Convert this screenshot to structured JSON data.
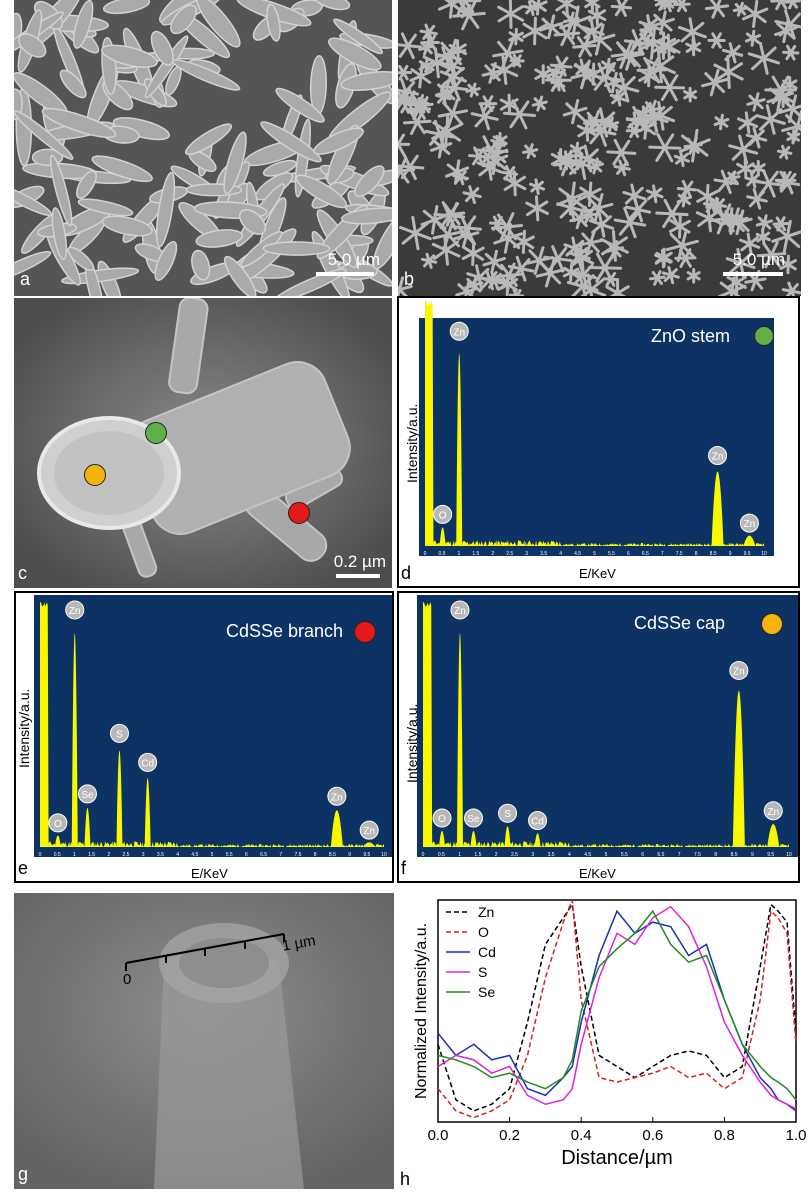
{
  "colors": {
    "green_dot": "#5fae48",
    "orange_dot": "#f3b40c",
    "red_dot": "#e41a1a",
    "eds_bg": "#0d3264",
    "eds_peak": "#f7f700"
  },
  "panel_a": {
    "label": "a",
    "scale": "5.0 µm"
  },
  "panel_b": {
    "label": "b",
    "scale": "5.0 µm"
  },
  "panel_c": {
    "label": "c",
    "scale": "0.2 µm"
  },
  "panel_d": {
    "label": "d",
    "title": "ZnO stem",
    "xlabel": "E/KeV",
    "ylabel": "Intensity/a.u.",
    "ticks": [
      "0",
      "0.5",
      "1",
      "1.5",
      "2",
      "2.5",
      "3",
      "3.5",
      "4",
      "4.5",
      "5",
      "5.5",
      "6",
      "6.5",
      "7",
      "7.5",
      "8",
      "8.5",
      "9",
      "9.5",
      "10"
    ],
    "peaks": [
      "Zn",
      "O",
      "Zn",
      "Zn"
    ]
  },
  "panel_e": {
    "label": "e",
    "title": "CdSSe branch",
    "xlabel": "E/KeV",
    "ylabel": "Intensity/a.u.",
    "ticks": [
      "0",
      "0.5",
      "1",
      "1.5",
      "2",
      "2.5",
      "3",
      "3.5",
      "4",
      "4.5",
      "5",
      "5.5",
      "6",
      "6.5",
      "7",
      "7.5",
      "8",
      "8.5",
      "9",
      "9.5",
      "10"
    ],
    "peaks": [
      "Zn",
      "O",
      "Se",
      "S",
      "Cd",
      "Zn",
      "Zn"
    ]
  },
  "panel_f": {
    "label": "f",
    "title": "CdSSe cap",
    "xlabel": "E/KeV",
    "ylabel": "Intensity/a.u.",
    "ticks": [
      "0",
      "0.5",
      "1",
      "1.5",
      "2",
      "2.5",
      "3",
      "3.5",
      "4",
      "4.5",
      "5",
      "5.5",
      "6",
      "6.5",
      "7",
      "7.5",
      "8",
      "8.5",
      "9",
      "9.5",
      "10"
    ],
    "peaks": [
      "Zn",
      "O",
      "Se",
      "S",
      "Cd",
      "Zn",
      "Zn"
    ]
  },
  "panel_g": {
    "label": "g",
    "ruler_start": "0",
    "ruler_end": "1 µm"
  },
  "panel_h": {
    "label": "h"
  },
  "chart_data": [
    {
      "type": "bar",
      "panel": "d",
      "title": "ZnO stem",
      "xlabel": "E/KeV",
      "ylabel": "Intensity/a.u.",
      "xlim": [
        0,
        10
      ],
      "peaks": [
        {
          "name": "O",
          "x": 0.52,
          "y": 0.09
        },
        {
          "name": "Zn",
          "x": 1.01,
          "y": 0.93
        },
        {
          "name": "Zn",
          "x": 8.63,
          "y": 0.36
        },
        {
          "name": "Zn",
          "x": 9.57,
          "y": 0.05
        }
      ]
    },
    {
      "type": "bar",
      "panel": "e",
      "title": "CdSSe branch",
      "xlabel": "E/KeV",
      "ylabel": "Intensity/a.u.",
      "xlim": [
        0,
        10
      ],
      "peaks": [
        {
          "name": "O",
          "x": 0.52,
          "y": 0.05
        },
        {
          "name": "Zn",
          "x": 1.01,
          "y": 0.93
        },
        {
          "name": "Se",
          "x": 1.38,
          "y": 0.17
        },
        {
          "name": "S",
          "x": 2.31,
          "y": 0.42
        },
        {
          "name": "Cd",
          "x": 3.13,
          "y": 0.3
        },
        {
          "name": "Zn",
          "x": 8.63,
          "y": 0.16
        },
        {
          "name": "Zn",
          "x": 9.57,
          "y": 0.02
        }
      ]
    },
    {
      "type": "bar",
      "panel": "f",
      "title": "CdSSe cap",
      "xlabel": "E/KeV",
      "ylabel": "Intensity/a.u.",
      "xlim": [
        0,
        10
      ],
      "peaks": [
        {
          "name": "O",
          "x": 0.52,
          "y": 0.07
        },
        {
          "name": "Zn",
          "x": 1.01,
          "y": 0.93
        },
        {
          "name": "Se",
          "x": 1.38,
          "y": 0.07
        },
        {
          "name": "S",
          "x": 2.31,
          "y": 0.09
        },
        {
          "name": "Cd",
          "x": 3.13,
          "y": 0.06
        },
        {
          "name": "Zn",
          "x": 8.63,
          "y": 0.68
        },
        {
          "name": "Zn",
          "x": 9.57,
          "y": 0.1
        }
      ]
    },
    {
      "type": "line",
      "panel": "h",
      "xlabel": "Distance/µm",
      "ylabel": "Normalized Intensity/a.u.",
      "xlim": [
        0.0,
        1.0
      ],
      "ylim": [
        0,
        1
      ],
      "xticks": [
        "0.0",
        "0.2",
        "0.4",
        "0.6",
        "0.8",
        "1.0"
      ],
      "legend": "top-left",
      "x": [
        0.0,
        0.05,
        0.1,
        0.15,
        0.2,
        0.25,
        0.3,
        0.35,
        0.375,
        0.4,
        0.45,
        0.5,
        0.55,
        0.6,
        0.65,
        0.7,
        0.75,
        0.8,
        0.85,
        0.9,
        0.93,
        0.95,
        0.975,
        1.0
      ],
      "series": [
        {
          "name": "Zn",
          "color": "#000000",
          "dash": true,
          "values": [
            0.35,
            0.1,
            0.05,
            0.08,
            0.15,
            0.45,
            0.8,
            0.92,
            0.98,
            0.7,
            0.3,
            0.25,
            0.2,
            0.25,
            0.3,
            0.32,
            0.3,
            0.2,
            0.25,
            0.7,
            0.98,
            0.95,
            0.9,
            0.4
          ]
        },
        {
          "name": "O",
          "color": "#d62020",
          "dash": true,
          "values": [
            0.15,
            0.05,
            0.02,
            0.05,
            0.1,
            0.3,
            0.65,
            0.9,
            1.0,
            0.55,
            0.2,
            0.18,
            0.2,
            0.22,
            0.25,
            0.2,
            0.22,
            0.15,
            0.2,
            0.55,
            0.95,
            0.92,
            0.85,
            0.35
          ]
        },
        {
          "name": "Cd",
          "color": "#1a2fb0",
          "dash": false,
          "values": [
            0.4,
            0.3,
            0.35,
            0.28,
            0.3,
            0.15,
            0.12,
            0.2,
            0.25,
            0.45,
            0.75,
            0.95,
            0.85,
            0.9,
            0.88,
            0.75,
            0.8,
            0.55,
            0.35,
            0.2,
            0.15,
            0.1,
            0.08,
            0.05
          ]
        },
        {
          "name": "S",
          "color": "#e020d8",
          "dash": false,
          "values": [
            0.25,
            0.3,
            0.28,
            0.22,
            0.25,
            0.12,
            0.08,
            0.1,
            0.15,
            0.35,
            0.65,
            0.85,
            0.8,
            0.92,
            0.97,
            0.88,
            0.7,
            0.45,
            0.3,
            0.18,
            0.12,
            0.1,
            0.08,
            0.06
          ]
        },
        {
          "name": "Se",
          "color": "#228b22",
          "dash": false,
          "values": [
            0.3,
            0.28,
            0.25,
            0.2,
            0.22,
            0.18,
            0.15,
            0.2,
            0.28,
            0.5,
            0.7,
            0.78,
            0.85,
            0.95,
            0.8,
            0.72,
            0.75,
            0.55,
            0.35,
            0.25,
            0.2,
            0.18,
            0.15,
            0.1
          ]
        }
      ]
    }
  ]
}
